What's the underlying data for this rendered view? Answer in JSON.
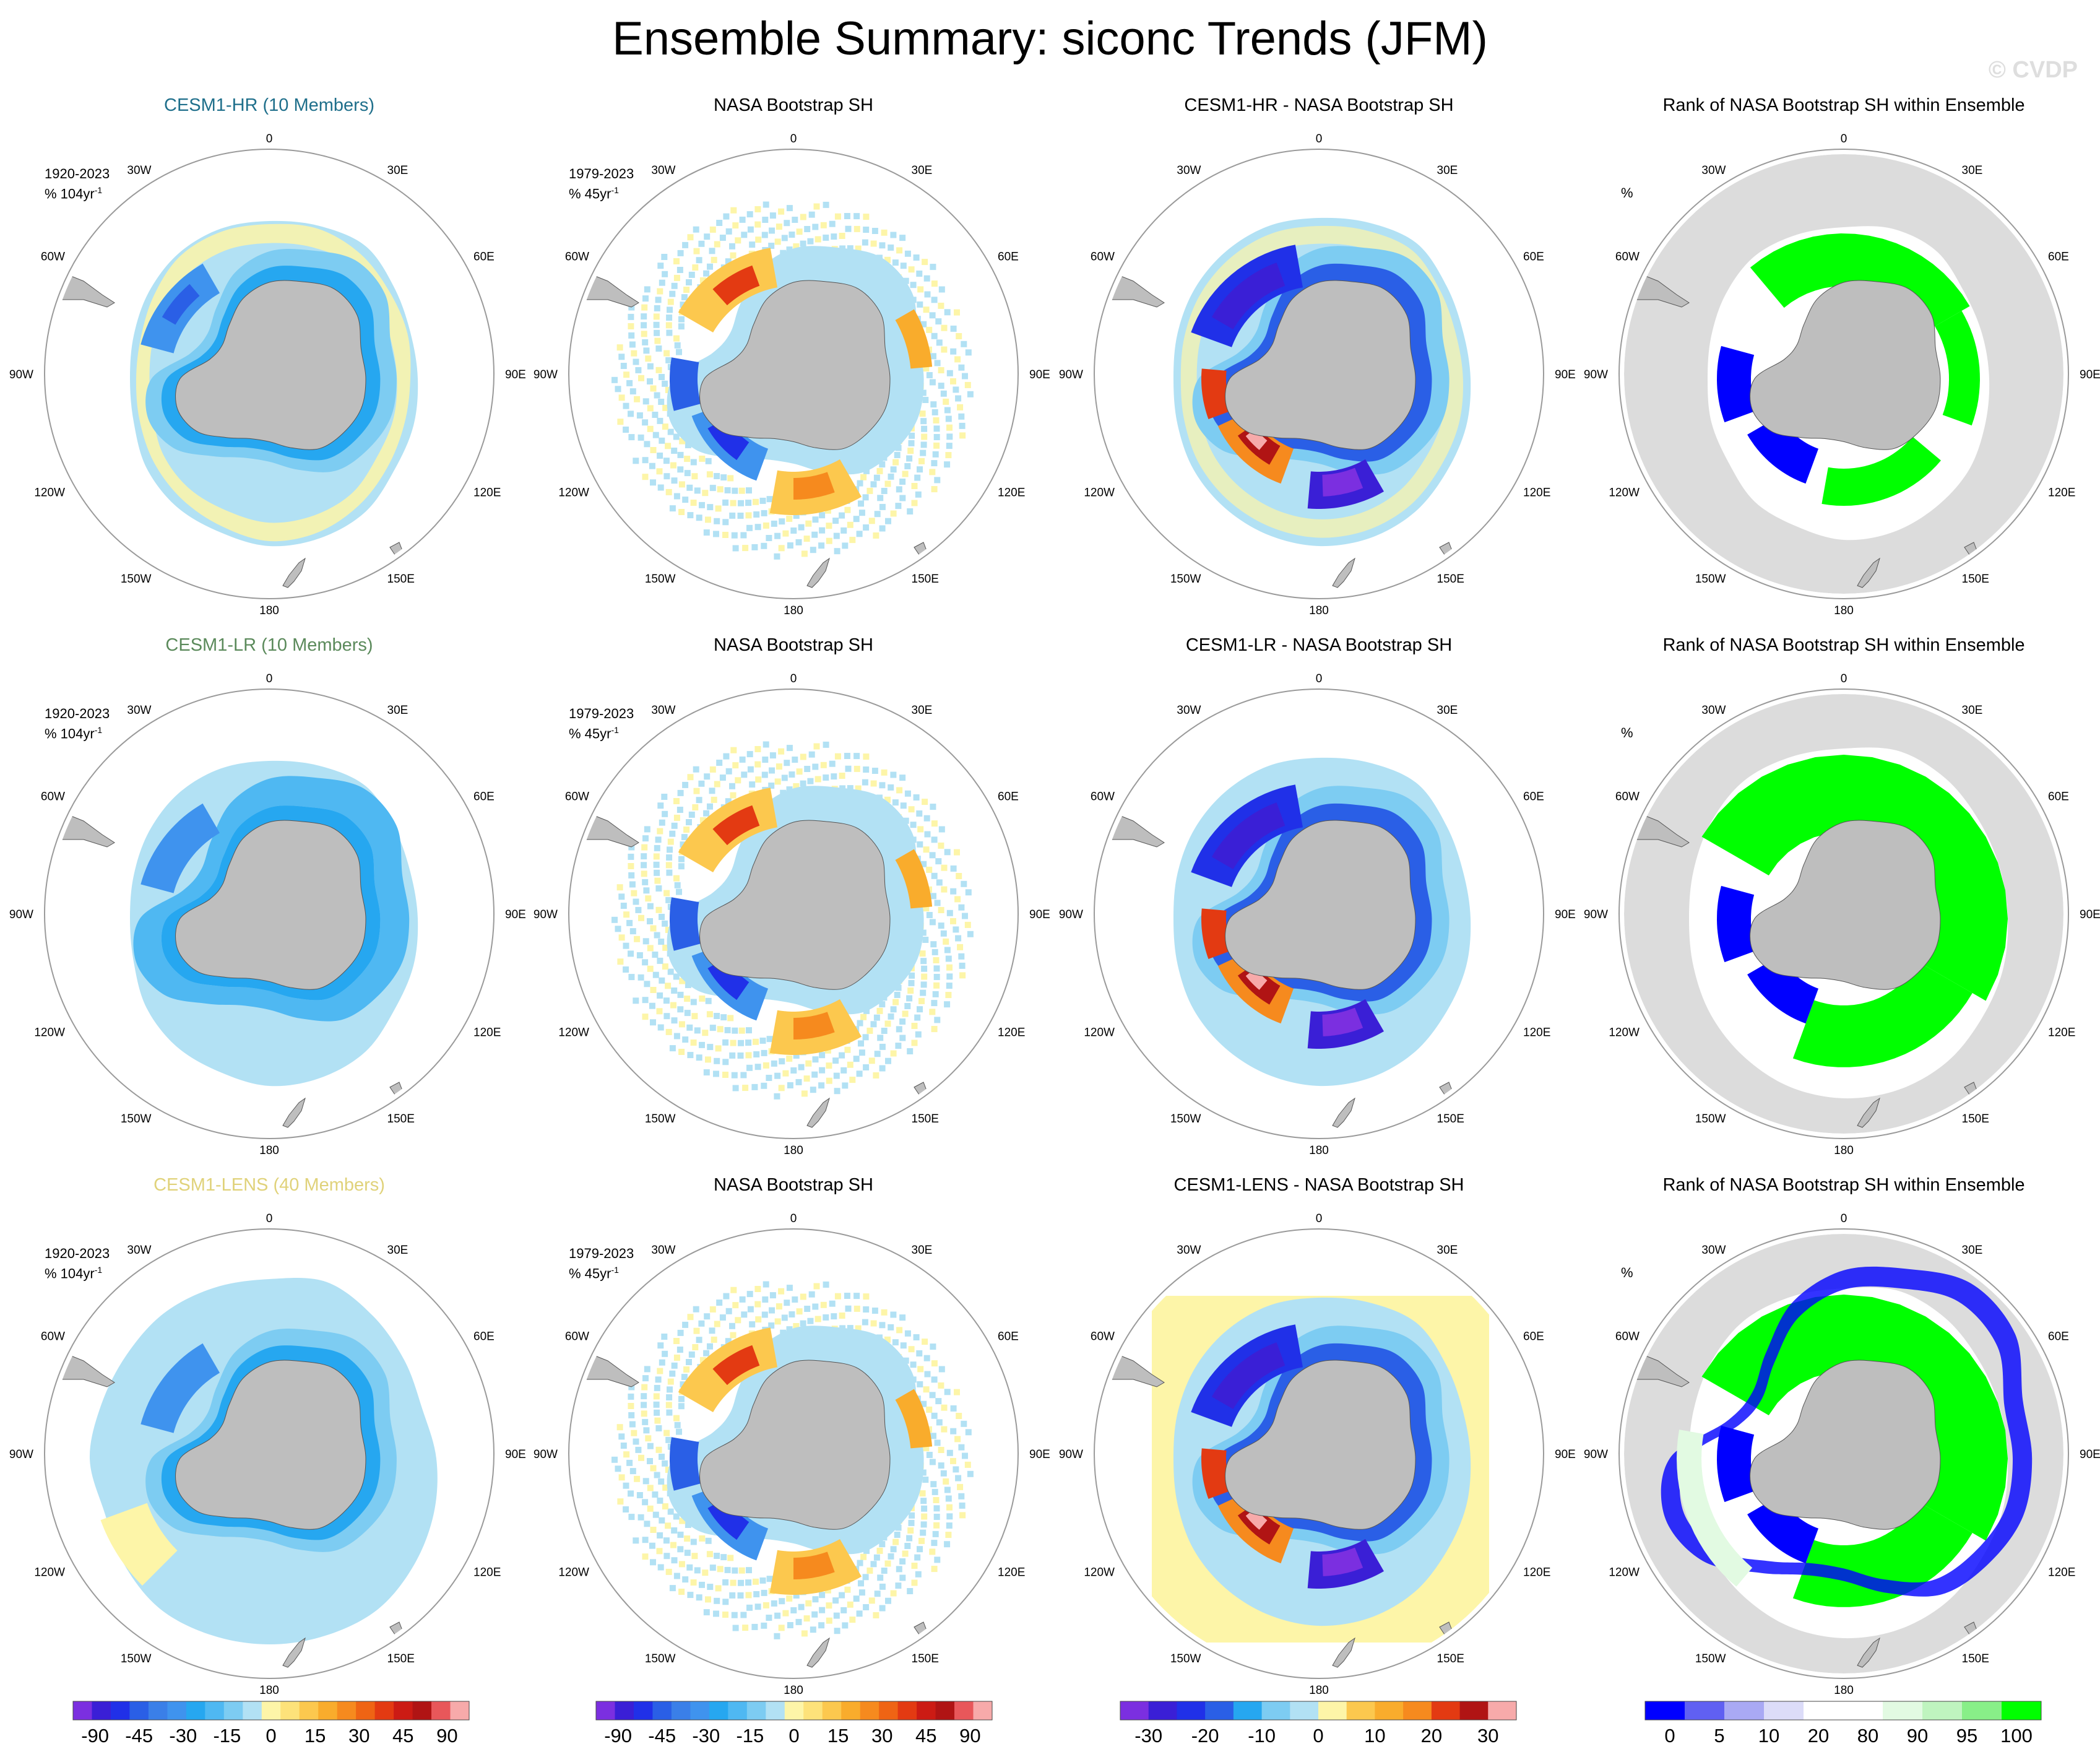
{
  "title": "Ensemble Summary: siconc Trends (JFM)",
  "watermark": "© CVDP",
  "longitude_labels": [
    "0",
    "30E",
    "60E",
    "90E",
    "120E",
    "150E",
    "180",
    "150W",
    "120W",
    "90W",
    "60W",
    "30W"
  ],
  "rows": [
    {
      "panels": [
        {
          "title": "CESM1-HR (10 Members)",
          "title_color": "#1f6f8b",
          "period": "1920-2023",
          "units": "% 104yr",
          "kind": "model"
        },
        {
          "title": "NASA Bootstrap SH",
          "title_color": "#000000",
          "period": "1979-2023",
          "units": "% 45yr",
          "kind": "obs"
        },
        {
          "title": "CESM1-HR - NASA Bootstrap SH",
          "title_color": "#000000",
          "kind": "diff"
        },
        {
          "title": "Rank of NASA Bootstrap SH within Ensemble",
          "title_color": "#000000",
          "units": "%",
          "kind": "rank"
        }
      ]
    },
    {
      "panels": [
        {
          "title": "CESM1-LR (10 Members)",
          "title_color": "#5b8a5b",
          "period": "1920-2023",
          "units": "% 104yr",
          "kind": "model"
        },
        {
          "title": "NASA Bootstrap SH",
          "title_color": "#000000",
          "period": "1979-2023",
          "units": "% 45yr",
          "kind": "obs"
        },
        {
          "title": "CESM1-LR - NASA Bootstrap SH",
          "title_color": "#000000",
          "kind": "diff"
        },
        {
          "title": "Rank of NASA Bootstrap SH within Ensemble",
          "title_color": "#000000",
          "units": "%",
          "kind": "rank"
        }
      ]
    },
    {
      "panels": [
        {
          "title": "CESM1-LENS (40 Members)",
          "title_color": "#e0d27a",
          "period": "1920-2023",
          "units": "% 104yr",
          "kind": "model"
        },
        {
          "title": "NASA Bootstrap SH",
          "title_color": "#000000",
          "period": "1979-2023",
          "units": "% 45yr",
          "kind": "obs"
        },
        {
          "title": "CESM1-LENS - NASA Bootstrap SH",
          "title_color": "#000000",
          "kind": "diff"
        },
        {
          "title": "Rank of NASA Bootstrap SH within Ensemble",
          "title_color": "#000000",
          "units": "%",
          "kind": "rank"
        }
      ]
    }
  ],
  "chart_data": {
    "type": "heatmap",
    "projection": "south polar stereographic",
    "land_color": "#bebebe",
    "colorbars": [
      {
        "name": "trend",
        "labels": [
          "-90",
          "-45",
          "-30",
          "-15",
          "0",
          "15",
          "30",
          "45",
          "90"
        ],
        "colors": [
          "#7b2fe0",
          "#3a1fd6",
          "#2030e8",
          "#2a5fe6",
          "#3a7fe8",
          "#3f93ee",
          "#26a7f0",
          "#4fb8f2",
          "#7dccf2",
          "#b2e1f4",
          "#fdf5a8",
          "#fde27a",
          "#fcc84e",
          "#f9ac2c",
          "#f68a1e",
          "#ef6414",
          "#e33a12",
          "#cc1b14",
          "#b01414",
          "#e8575a",
          "#f7aaaa"
        ]
      },
      {
        "name": "trend",
        "labels": [
          "-90",
          "-45",
          "-30",
          "-15",
          "0",
          "15",
          "30",
          "45",
          "90"
        ],
        "colors": [
          "#7b2fe0",
          "#3a1fd6",
          "#2030e8",
          "#2a5fe6",
          "#3a7fe8",
          "#3f93ee",
          "#26a7f0",
          "#4fb8f2",
          "#7dccf2",
          "#b2e1f4",
          "#fdf5a8",
          "#fde27a",
          "#fcc84e",
          "#f9ac2c",
          "#f68a1e",
          "#ef6414",
          "#e33a12",
          "#cc1b14",
          "#b01414",
          "#e8575a",
          "#f7aaaa"
        ]
      },
      {
        "name": "difference",
        "labels": [
          "-30",
          "-20",
          "-10",
          "0",
          "10",
          "20",
          "30"
        ],
        "colors": [
          "#7b2fe0",
          "#3a1fd6",
          "#2030e8",
          "#2a5fe6",
          "#26a7f0",
          "#7dccf2",
          "#b2e1f4",
          "#fdf5a8",
          "#fcc84e",
          "#f9ac2c",
          "#f68a1e",
          "#e33a12",
          "#b01414",
          "#f7aaaa"
        ]
      },
      {
        "name": "rank",
        "labels": [
          "0",
          "5",
          "10",
          "20",
          "80",
          "90",
          "95",
          "100"
        ],
        "colors": [
          "#0000ff",
          "#6060f2",
          "#a9a9f4",
          "#dcdcf8",
          "#ffffff",
          "#ffffff",
          "#e2fae2",
          "#bff4bf",
          "#88ef88",
          "#00ff00"
        ]
      }
    ]
  }
}
